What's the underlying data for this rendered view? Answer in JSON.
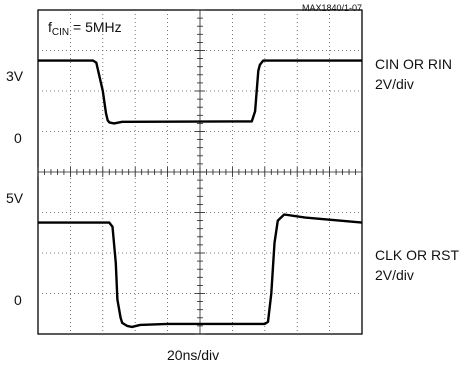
{
  "figure_id": "MAX1840/1-07",
  "annotation": {
    "prefix": "f",
    "subscript": "CIN",
    "suffix": " = 5MHz"
  },
  "x_scale_label": "20ns/div",
  "channels": [
    {
      "name": "CIN OR RIN",
      "scale": "2V/div",
      "level_high": "3V",
      "level_low": "0"
    },
    {
      "name": "CLK OR RST",
      "scale": "2V/div",
      "level_high": "5V",
      "level_low": "0"
    }
  ],
  "chart_data": {
    "type": "line",
    "title": "",
    "xlabel": "20ns/div",
    "ylabel": "",
    "x_unit": "ns",
    "x_range": [
      0,
      200
    ],
    "grid": true,
    "divisions": {
      "x": 10,
      "y": 8
    },
    "series": [
      {
        "name": "CIN OR RIN",
        "unit": "V",
        "volts_per_div": 2,
        "high": 3,
        "low": 0,
        "ground_div": 1.25,
        "points": [
          [
            0,
            3
          ],
          [
            34,
            3
          ],
          [
            36,
            2.9
          ],
          [
            40,
            1.5
          ],
          [
            42,
            0.4
          ],
          [
            43,
            0.05
          ],
          [
            44,
            -0.05
          ],
          [
            47,
            -0.1
          ],
          [
            52,
            -0.02
          ],
          [
            120,
            0
          ],
          [
            132,
            0
          ],
          [
            134,
            0.5
          ],
          [
            136,
            2.5
          ],
          [
            137,
            2.8
          ],
          [
            139,
            3
          ],
          [
            200,
            3
          ]
        ]
      },
      {
        "name": "CLK OR RST",
        "unit": "V",
        "volts_per_div": 2,
        "high": 5,
        "low": 0,
        "ground_div": -3.75,
        "points": [
          [
            0,
            5
          ],
          [
            44,
            5
          ],
          [
            46,
            4.8
          ],
          [
            48,
            3
          ],
          [
            49,
            1.2
          ],
          [
            51,
            0.3
          ],
          [
            52,
            0.05
          ],
          [
            55,
            -0.1
          ],
          [
            58,
            -0.15
          ],
          [
            63,
            -0.05
          ],
          [
            80,
            0
          ],
          [
            140,
            0
          ],
          [
            142,
            0.1
          ],
          [
            144,
            1.5
          ],
          [
            146,
            4
          ],
          [
            148,
            5.1
          ],
          [
            152,
            5.4
          ],
          [
            165,
            5.25
          ],
          [
            200,
            5
          ]
        ]
      }
    ]
  }
}
